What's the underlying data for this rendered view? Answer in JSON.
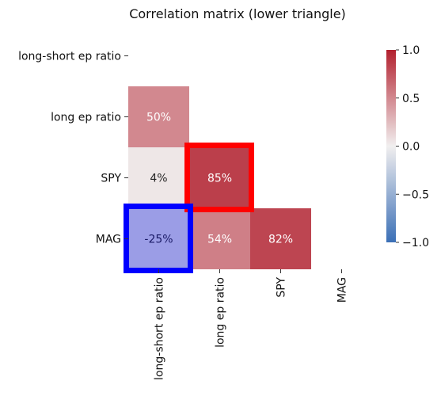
{
  "chart_data": {
    "type": "heatmap",
    "title": "Correlation matrix (lower triangle)",
    "labels": [
      "long-short ep ratio",
      "long ep ratio",
      "SPY",
      "MAG"
    ],
    "cells": [
      {
        "row": "long ep ratio",
        "col": "long-short ep ratio",
        "value": 0.5,
        "label": "50%"
      },
      {
        "row": "SPY",
        "col": "long-short ep ratio",
        "value": 0.04,
        "label": "4%"
      },
      {
        "row": "SPY",
        "col": "long ep ratio",
        "value": 0.85,
        "label": "85%",
        "highlight": "red"
      },
      {
        "row": "MAG",
        "col": "long-short ep ratio",
        "value": -0.25,
        "label": "-25%",
        "highlight": "blue"
      },
      {
        "row": "MAG",
        "col": "long ep ratio",
        "value": 0.54,
        "label": "54%"
      },
      {
        "row": "MAG",
        "col": "SPY",
        "value": 0.82,
        "label": "82%"
      }
    ],
    "colorbar": {
      "range": [
        -1.0,
        1.0
      ],
      "ticks": [
        "1.0",
        "0.5",
        "0.0",
        "−0.5",
        "−1.0"
      ],
      "tick_values": [
        1.0,
        0.5,
        0.0,
        -0.5,
        -1.0
      ]
    },
    "colors": {
      "low": "#3b6fb6",
      "mid": "#f1efef",
      "high": "#b2202e",
      "red_highlight": "#ff0000",
      "blue_highlight": "#0000ff"
    }
  }
}
